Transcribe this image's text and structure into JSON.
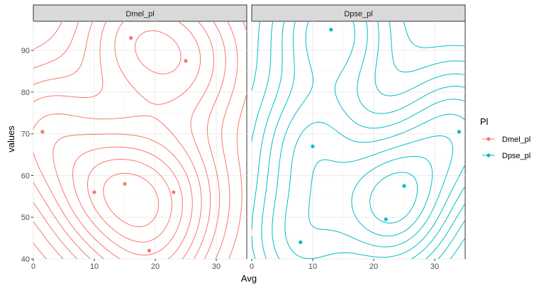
{
  "chart_data": {
    "type": "scatter",
    "subtype": "faceted scatter with 2D density contours",
    "title": "",
    "xlabel": "Avg",
    "ylabel": "values",
    "xlim": [
      0,
      35
    ],
    "ylim": [
      40,
      97
    ],
    "x_ticks": [
      0,
      10,
      20,
      30
    ],
    "y_ticks": [
      40,
      50,
      60,
      70,
      80,
      90
    ],
    "grid": true,
    "legend": {
      "title": "Pl",
      "placement": "right"
    },
    "facets": [
      "Dmel_pl",
      "Dpse_pl"
    ],
    "series": [
      {
        "name": "Dmel_pl",
        "color": "#F8766D",
        "facet": "Dmel_pl",
        "points": [
          {
            "x": 1.5,
            "y": 70.5
          },
          {
            "x": 10,
            "y": 56
          },
          {
            "x": 15,
            "y": 58
          },
          {
            "x": 16,
            "y": 93
          },
          {
            "x": 19,
            "y": 42
          },
          {
            "x": 23,
            "y": 56
          },
          {
            "x": 25,
            "y": 87.5
          }
        ]
      },
      {
        "name": "Dpse_pl",
        "color": "#00BFC4",
        "facet": "Dpse_pl",
        "points": [
          {
            "x": 8,
            "y": 44
          },
          {
            "x": 10,
            "y": 67
          },
          {
            "x": 13,
            "y": 95
          },
          {
            "x": 22,
            "y": 49.5
          },
          {
            "x": 25,
            "y": 57.5
          },
          {
            "x": 34,
            "y": 70.5
          }
        ]
      }
    ],
    "contour_bandwidth": [
      6.2,
      11
    ],
    "contour_levels": [
      0.09,
      0.16,
      0.24,
      0.33,
      0.43,
      0.54,
      0.66,
      0.78,
      0.9
    ]
  }
}
